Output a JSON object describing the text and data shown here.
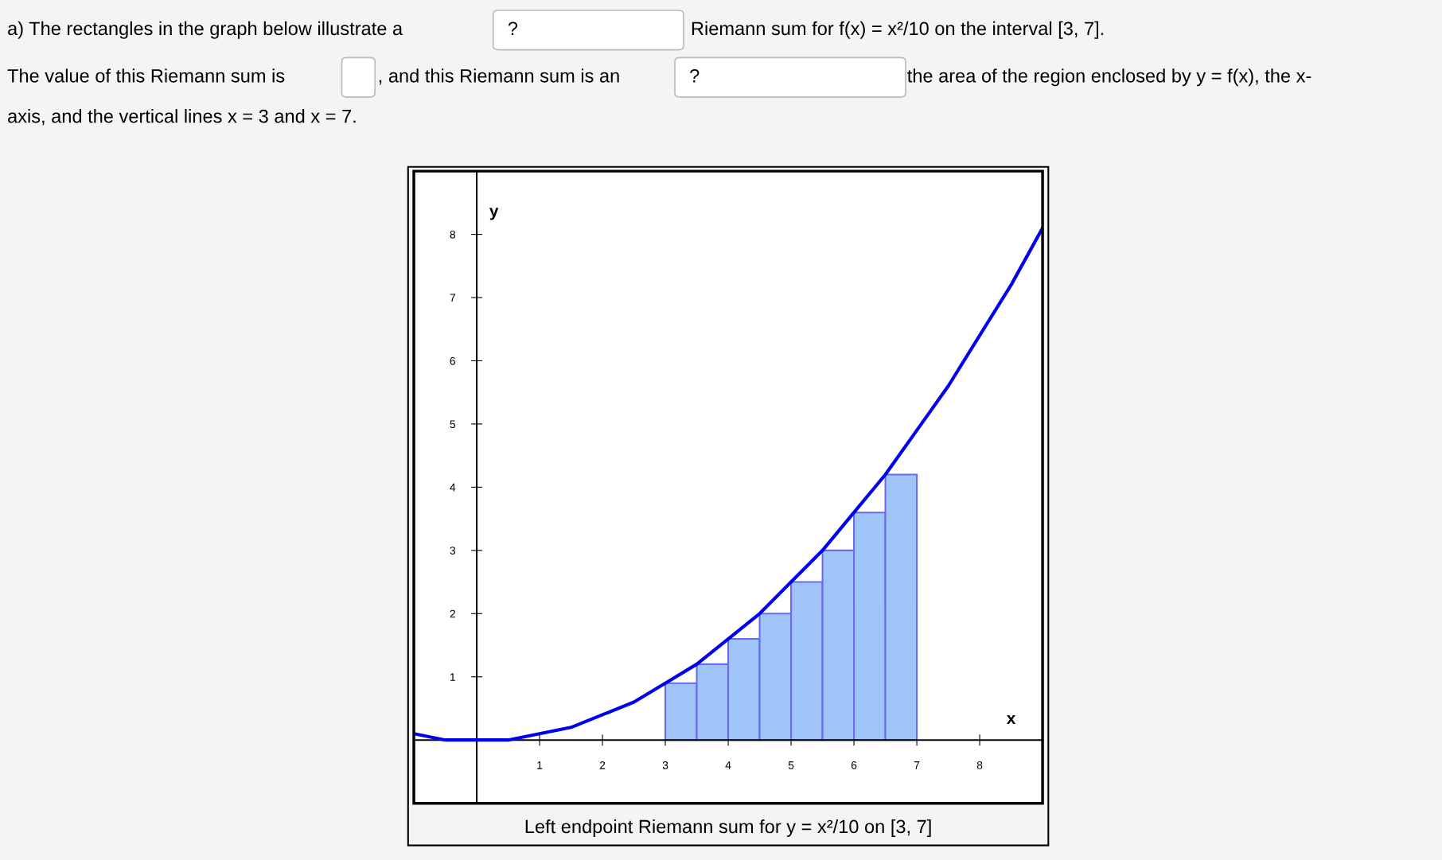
{
  "chart_data": {
    "type": "bar",
    "title": "Left endpoint Riemann sum for y = x²/10 on [3, 7]",
    "xlabel": "x",
    "ylabel": "y",
    "annotations": [
      "a) The rectangles in the graph below illustrate a",
      "?",
      "Riemann sum for f(x) = x²/10 on the interval [3, 7].",
      "The value of this Riemann sum is",
      ", and this Riemann sum is an",
      "?",
      "the area of the region enclosed by y = f(x), the x-",
      "axis, and the vertical lines x = 3 and x = 7."
    ],
    "xlim": [
      -1,
      9
    ],
    "ylim": [
      -1,
      9
    ],
    "xticks": [
      1,
      2,
      3,
      4,
      5,
      6,
      7,
      8
    ],
    "yticks": [
      1,
      2,
      3,
      4,
      5,
      6,
      7,
      8
    ],
    "grid": false,
    "series": [
      {
        "color": "#9fc5f8",
        "x": [
          3.25,
          3.75,
          4.25,
          4.75,
          5.25,
          5.75,
          6.25,
          6.75
        ],
        "values": [
          0.9,
          1.2,
          1.6,
          2.0,
          2.5,
          3.0,
          3.6,
          4.2
        ]
      },
      {
        "type": "line",
        "color": "#0000ee",
        "x": [
          -1,
          -0.5,
          0,
          0.5,
          1,
          1.5,
          2,
          2.5,
          3,
          3.5,
          4,
          4.5,
          5,
          5.5,
          6,
          6.5,
          7,
          7.5,
          8,
          8.5,
          9
        ],
        "values": [
          0.1,
          0,
          0,
          0,
          0.1,
          0.2,
          0.4,
          0.6,
          0.9,
          1.2,
          1.6,
          2.0,
          2.5,
          3.0,
          3.6,
          4.2,
          4.9,
          5.6,
          6.4,
          7.2,
          8.1
        ]
      }
    ]
  }
}
